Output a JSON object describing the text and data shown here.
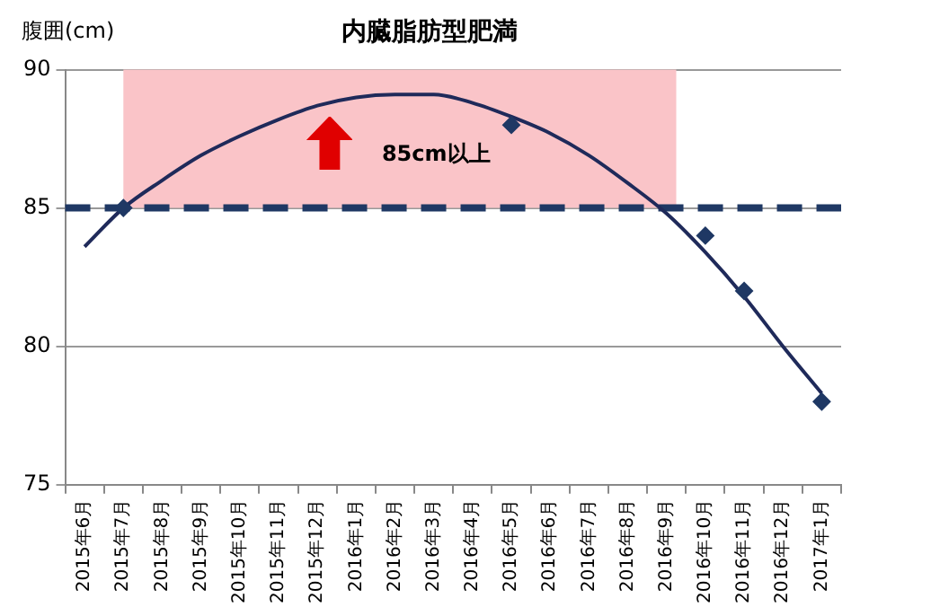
{
  "chart_data": {
    "type": "scatter",
    "title": "内臓脂肪型肥満",
    "ylabel": "腹囲(cm)",
    "categories": [
      "2015年6月",
      "2015年7月",
      "2015年8月",
      "2015年9月",
      "2015年10月",
      "2015年11月",
      "2015年12月",
      "2016年1月",
      "2016年2月",
      "2016年3月",
      "2016年4月",
      "2016年5月",
      "2016年6月",
      "2016年7月",
      "2016年8月",
      "2016年9月",
      "2016年10月",
      "2016年11月",
      "2016年12月",
      "2017年1月"
    ],
    "series": [
      {
        "color": "#1f3864",
        "marker": "diamond",
        "values": [
          null,
          85,
          null,
          null,
          null,
          null,
          null,
          null,
          null,
          null,
          null,
          88,
          null,
          null,
          null,
          null,
          84,
          82,
          null,
          78
        ]
      },
      {
        "type": "line",
        "color": "#1f2a5a",
        "marker": "none",
        "line_style": "solid",
        "values": [
          83.6,
          85.0,
          86.0,
          86.9,
          87.6,
          88.2,
          88.7,
          89.0,
          89.1,
          89.1,
          88.8,
          88.3,
          87.7,
          86.9,
          85.9,
          84.8,
          83.4,
          81.8,
          80.0,
          78.3
        ]
      }
    ],
    "ylim": [
      75,
      90
    ],
    "yticks": [
      75,
      80,
      85,
      90
    ],
    "grid": "y",
    "legend": false,
    "ref_lines": [
      {
        "axis": "y",
        "value": 85,
        "color": "#1f3864",
        "line_style": "dashed"
      }
    ],
    "bands": [
      {
        "axis": "x",
        "from": "2015年7月",
        "to": "2016年9月",
        "label": "85cm以上",
        "color": "#fac4c8"
      }
    ]
  }
}
